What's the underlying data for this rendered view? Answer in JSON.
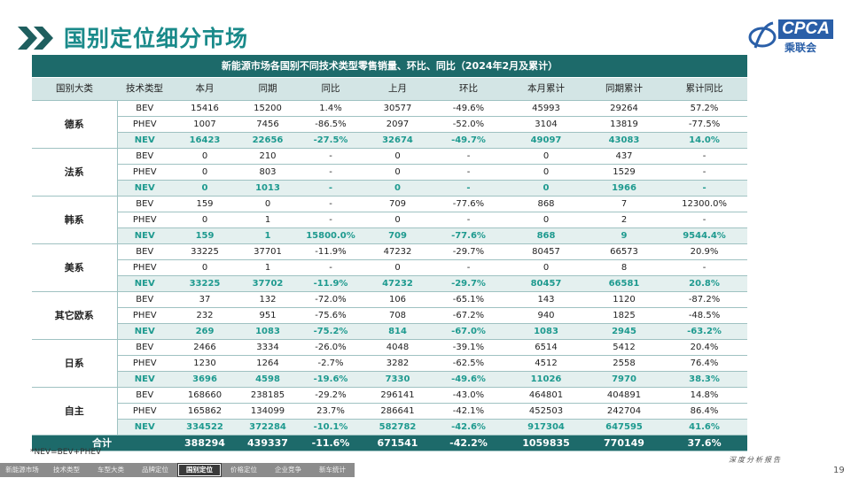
{
  "header": {
    "title": "国别定位细分市场",
    "logo_text": "CPCA",
    "logo_name": "乘联会"
  },
  "table": {
    "title": "新能源市场各国别不同技术类型零售销量、环比、同比（2024年2月及累计）",
    "header": [
      "国别大类",
      "技术类型",
      "本月",
      "同期",
      "同比",
      "上月",
      "环比",
      "本月累计",
      "同期累计",
      "累计同比"
    ],
    "groups": [
      {
        "name": "德系",
        "rows": [
          [
            "BEV",
            "15416",
            "15200",
            "1.4%",
            "30577",
            "-49.6%",
            "45993",
            "29264",
            "57.2%"
          ],
          [
            "PHEV",
            "1007",
            "7456",
            "-86.5%",
            "2097",
            "-52.0%",
            "3104",
            "13819",
            "-77.5%"
          ],
          [
            "NEV",
            "16423",
            "22656",
            "-27.5%",
            "32674",
            "-49.7%",
            "49097",
            "43083",
            "14.0%"
          ]
        ]
      },
      {
        "name": "法系",
        "rows": [
          [
            "BEV",
            "0",
            "210",
            "-",
            "0",
            "-",
            "0",
            "437",
            "-"
          ],
          [
            "PHEV",
            "0",
            "803",
            "-",
            "0",
            "-",
            "0",
            "1529",
            "-"
          ],
          [
            "NEV",
            "0",
            "1013",
            "-",
            "0",
            "-",
            "0",
            "1966",
            "-"
          ]
        ]
      },
      {
        "name": "韩系",
        "rows": [
          [
            "BEV",
            "159",
            "0",
            "-",
            "709",
            "-77.6%",
            "868",
            "7",
            "12300.0%"
          ],
          [
            "PHEV",
            "0",
            "1",
            "-",
            "0",
            "-",
            "0",
            "2",
            "-"
          ],
          [
            "NEV",
            "159",
            "1",
            "15800.0%",
            "709",
            "-77.6%",
            "868",
            "9",
            "9544.4%"
          ]
        ]
      },
      {
        "name": "美系",
        "rows": [
          [
            "BEV",
            "33225",
            "37701",
            "-11.9%",
            "47232",
            "-29.7%",
            "80457",
            "66573",
            "20.9%"
          ],
          [
            "PHEV",
            "0",
            "1",
            "-",
            "0",
            "-",
            "0",
            "8",
            "-"
          ],
          [
            "NEV",
            "33225",
            "37702",
            "-11.9%",
            "47232",
            "-29.7%",
            "80457",
            "66581",
            "20.8%"
          ]
        ]
      },
      {
        "name": "其它欧系",
        "rows": [
          [
            "BEV",
            "37",
            "132",
            "-72.0%",
            "106",
            "-65.1%",
            "143",
            "1120",
            "-87.2%"
          ],
          [
            "PHEV",
            "232",
            "951",
            "-75.6%",
            "708",
            "-67.2%",
            "940",
            "1825",
            "-48.5%"
          ],
          [
            "NEV",
            "269",
            "1083",
            "-75.2%",
            "814",
            "-67.0%",
            "1083",
            "2945",
            "-63.2%"
          ]
        ]
      },
      {
        "name": "日系",
        "rows": [
          [
            "BEV",
            "2466",
            "3334",
            "-26.0%",
            "4048",
            "-39.1%",
            "6514",
            "5412",
            "20.4%"
          ],
          [
            "PHEV",
            "1230",
            "1264",
            "-2.7%",
            "3282",
            "-62.5%",
            "4512",
            "2558",
            "76.4%"
          ],
          [
            "NEV",
            "3696",
            "4598",
            "-19.6%",
            "7330",
            "-49.6%",
            "11026",
            "7970",
            "38.3%"
          ]
        ]
      },
      {
        "name": "自主",
        "rows": [
          [
            "BEV",
            "168660",
            "238185",
            "-29.2%",
            "296141",
            "-43.0%",
            "464801",
            "404891",
            "14.8%"
          ],
          [
            "PHEV",
            "165862",
            "134099",
            "23.7%",
            "286641",
            "-42.1%",
            "452503",
            "242704",
            "86.4%"
          ],
          [
            "NEV",
            "334522",
            "372284",
            "-10.1%",
            "582782",
            "-42.6%",
            "917304",
            "647595",
            "41.6%"
          ]
        ]
      }
    ],
    "total": [
      "合计",
      "388294",
      "439337",
      "-11.6%",
      "671541",
      "-42.2%",
      "1059835",
      "770149",
      "37.6%"
    ]
  },
  "footer": {
    "note": "*NEV=BEV+PHEV",
    "report_label": "深度分析报告",
    "page_number": "19",
    "nav": [
      "新能源市场",
      "技术类型",
      "车型大类",
      "品牌定位",
      "国别定位",
      "价格定位",
      "企业竞争",
      "新车统计"
    ],
    "active_nav": 4
  }
}
